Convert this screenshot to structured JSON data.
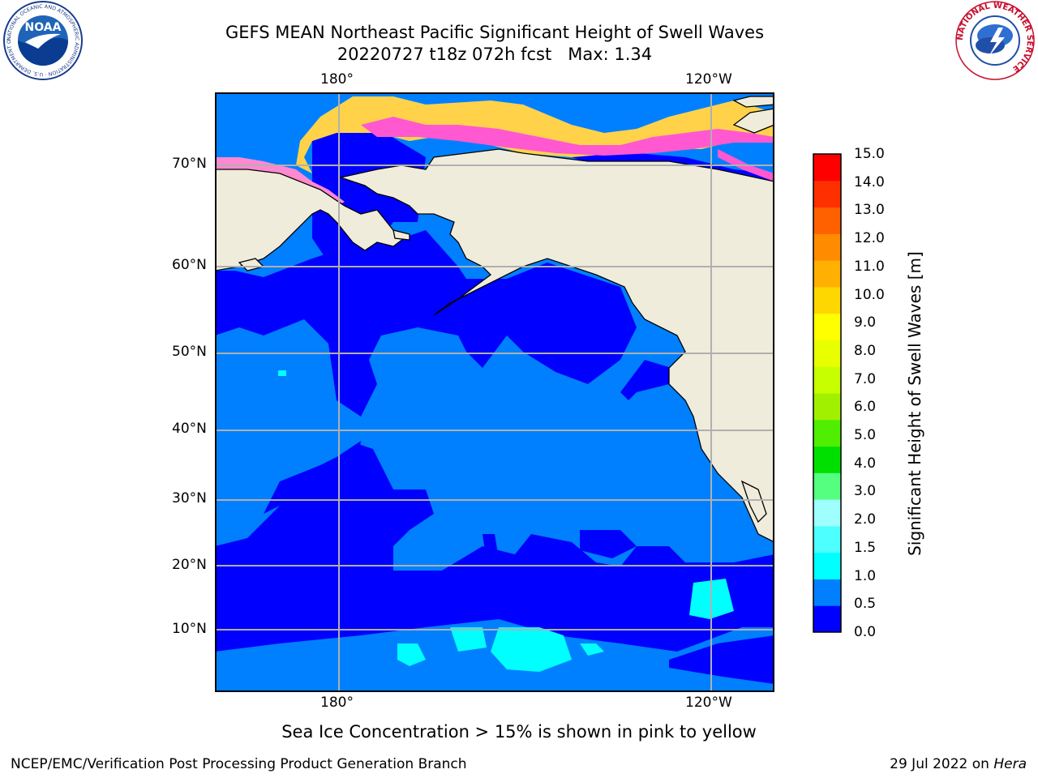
{
  "title_line1": "GEFS MEAN Northeast Pacific Significant Height of Swell Waves",
  "title_line2": "20220727 t18z 072h fcst   Max: 1.34",
  "map": {
    "lon_labels": [
      "180°",
      "120°W"
    ],
    "lat_labels": [
      "70°N",
      "60°N",
      "50°N",
      "40°N",
      "30°N",
      "20°N",
      "10°N"
    ],
    "land_color": "#efecdc",
    "grid_color": "#b0b0b0"
  },
  "colorbar": {
    "label": "Significant Height of Swell Waves [m]",
    "ticks": [
      "15.0",
      "14.0",
      "13.0",
      "12.0",
      "11.0",
      "10.0",
      "9.0",
      "8.0",
      "7.0",
      "6.0",
      "5.0",
      "4.0",
      "3.0",
      "2.0",
      "1.5",
      "1.0",
      "0.5",
      "0.0"
    ],
    "colors_bottom_to_top": [
      "#0000ff",
      "#0080ff",
      "#00ffff",
      "#4dffff",
      "#9fffff",
      "#55ff80",
      "#00e000",
      "#50ee00",
      "#a0f000",
      "#c8ff00",
      "#e8ff00",
      "#ffff00",
      "#ffd700",
      "#ffb000",
      "#ff8c00",
      "#ff6000",
      "#ff3000",
      "#ff0000"
    ]
  },
  "footnote": "Sea Ice Concentration > 15% is shown in pink to yellow",
  "credit": "NCEP/EMC/Verification Post Processing Product Generation Branch",
  "date_text": "29 Jul 2022 on ",
  "date_machine": "Hera",
  "logos": {
    "left": {
      "name": "NOAA",
      "ring_text": "NATIONAL OCEANIC AND ATMOSPHERIC ADMINISTRATION · U.S. DEPARTMENT OF COMMERCE"
    },
    "right": {
      "name": "NATIONAL WEATHER SERVICE"
    }
  }
}
